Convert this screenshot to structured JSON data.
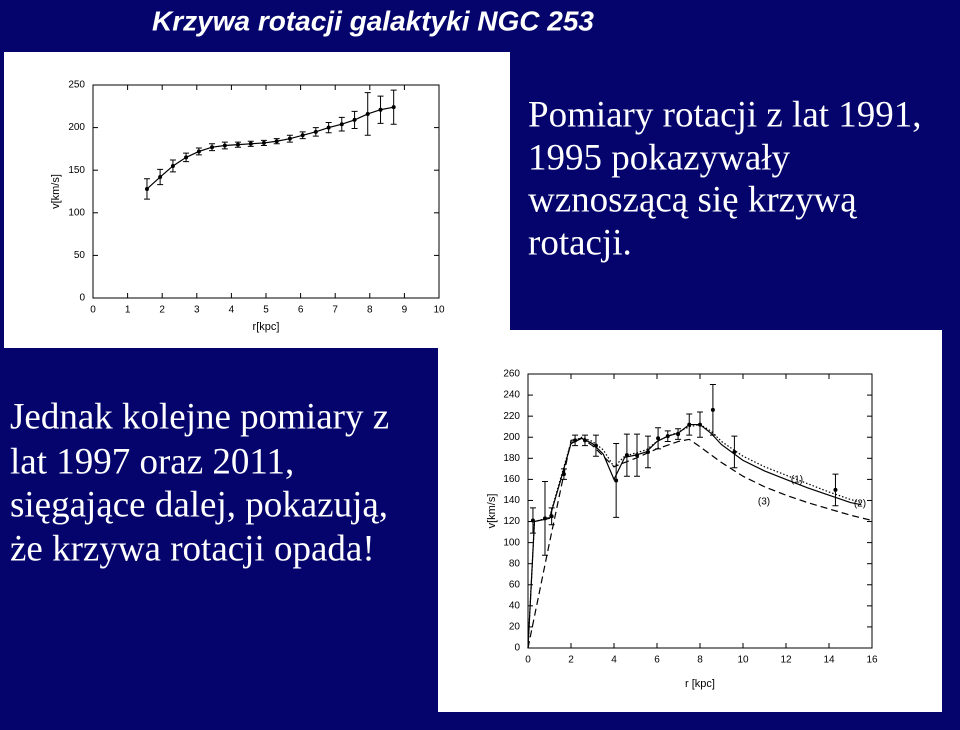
{
  "title": "Krzywa rotacji galaktyki NGC 253",
  "text_right": [
    "Pomiary rotacji z lat 1991,",
    "1995 pokazywały",
    "wznoszącą się krzywą",
    "rotacji."
  ],
  "text_left": [
    "Jednak kolejne pomiary z",
    "lat 1997 oraz 2011,",
    "sięgające dalej, pokazują,",
    "że krzywa rotacji opada!"
  ],
  "chart_data": [
    {
      "type": "line",
      "x_label": "r[kpc]",
      "y_label": "v[km/s]",
      "series": [
        {
          "color": "#000000",
          "style": "solid",
          "markers": true,
          "line": true,
          "x": [
            1.56,
            1.94,
            2.31,
            2.69,
            3.06,
            3.44,
            3.81,
            4.19,
            4.56,
            4.94,
            5.31,
            5.69,
            6.06,
            6.44,
            6.81,
            7.19,
            7.56,
            7.94,
            8.31,
            8.69
          ],
          "values": [
            128,
            142,
            155,
            165,
            172,
            177,
            179,
            180,
            181,
            182,
            184,
            187,
            191,
            195,
            200,
            204,
            209,
            216,
            221,
            224
          ],
          "errors": [
            12,
            9,
            7,
            5,
            4,
            4,
            4,
            3,
            3,
            3,
            3,
            4,
            4,
            5,
            6,
            8,
            10,
            25,
            16,
            20
          ]
        }
      ],
      "xlim": [
        0,
        10
      ],
      "xticks": [
        0,
        1,
        2,
        3,
        4,
        5,
        6,
        7,
        8,
        9,
        10
      ],
      "ylim": [
        0,
        250
      ],
      "yticks": [
        0,
        50,
        100,
        150,
        200,
        250
      ]
    },
    {
      "type": "line",
      "x_label": "r [kpc]",
      "y_label": "v[km/s]",
      "series": [
        {
          "color": "#000000",
          "style": "none",
          "markers": true,
          "line": false,
          "x": [
            0.23,
            0.79,
            1.1,
            1.67,
            2.19,
            2.65,
            3.16,
            4.1,
            4.6,
            5.07,
            5.58,
            6.05,
            6.5,
            6.98,
            7.5,
            8.0,
            8.6,
            9.6,
            14.3
          ],
          "values": [
            121,
            123,
            125,
            165,
            197,
            197,
            192,
            159,
            183,
            183,
            186,
            199,
            201,
            203,
            212,
            212,
            226,
            186,
            150
          ],
          "errors": [
            12,
            35,
            8,
            5,
            5,
            5,
            10,
            35,
            20,
            20,
            15,
            10,
            5,
            5,
            10,
            12,
            24,
            15,
            15
          ]
        },
        {
          "name": "(1)",
          "color": "#000000",
          "style": "dotted",
          "markers": false,
          "line": true,
          "x": [
            0,
            0.3,
            1,
            1.5,
            2,
            2.5,
            3,
            3.5,
            4,
            4.5,
            5,
            5.5,
            6,
            6.5,
            7,
            7.5,
            8,
            8.5,
            9,
            10,
            11,
            12,
            13,
            14,
            15,
            15.5
          ],
          "values": [
            0,
            120,
            124,
            160,
            195,
            200,
            196,
            188,
            172,
            182,
            185,
            188,
            196,
            201,
            205,
            210,
            212,
            206,
            196,
            182,
            172,
            164,
            156,
            148,
            141,
            138
          ]
        },
        {
          "name": "(2)",
          "color": "#000000",
          "style": "solid",
          "markers": false,
          "line": true,
          "x": [
            0,
            0.3,
            1,
            1.5,
            2,
            2.5,
            3,
            3.5,
            4,
            4.5,
            5,
            5.5,
            6,
            6.5,
            7,
            7.5,
            8,
            8.5,
            9,
            10,
            11,
            12,
            13,
            14,
            15,
            15.5
          ],
          "values": [
            0,
            120,
            123,
            158,
            194,
            199,
            194,
            184,
            160,
            181,
            183,
            186,
            196,
            201,
            204,
            212,
            212,
            204,
            193,
            178,
            168,
            160,
            152,
            145,
            138,
            136
          ]
        },
        {
          "name": "(3)",
          "color": "#000000",
          "style": "dashed",
          "markers": false,
          "line": true,
          "x": [
            0,
            1,
            2,
            2.5,
            3,
            4,
            5,
            6,
            7,
            7.5,
            8,
            9,
            10,
            11,
            12,
            13,
            14,
            15,
            16
          ],
          "values": [
            0,
            100,
            197,
            199,
            192,
            172,
            180,
            189,
            196,
            198,
            191,
            176,
            163,
            153,
            145,
            138,
            132,
            126,
            121
          ]
        }
      ],
      "xlim": [
        0,
        16
      ],
      "xticks": [
        0,
        2,
        4,
        6,
        8,
        10,
        12,
        14,
        16
      ],
      "ylim": [
        0,
        260
      ],
      "yticks": [
        0,
        20,
        40,
        60,
        80,
        100,
        120,
        140,
        160,
        180,
        200,
        220,
        240,
        260
      ]
    }
  ]
}
